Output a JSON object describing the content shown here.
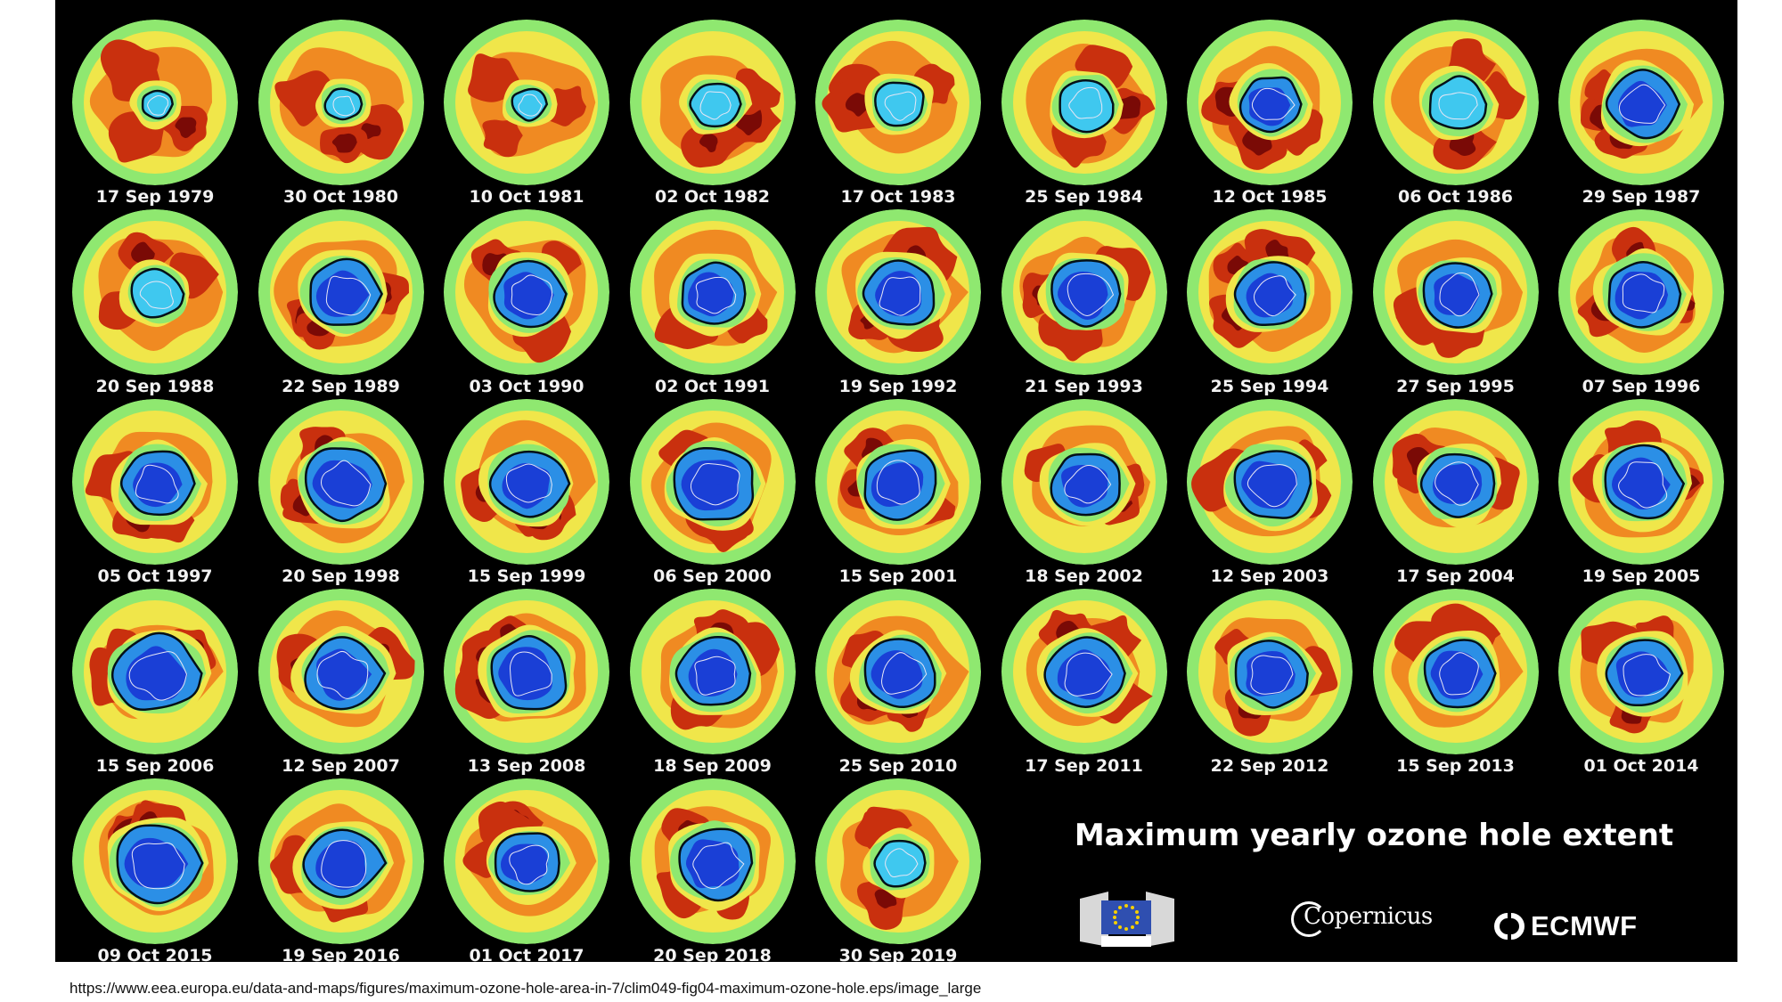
{
  "title": "Maximum yearly ozone hole extent",
  "source_url": "https://www.eea.europa.eu/data-and-maps/figures/maximum-ozone-hole-area-in-7/clim049-fig04-maximum-ozone-hole.eps/image_large",
  "logos": {
    "copernicus": "Copernicus",
    "ecmwf": "ECMWF"
  },
  "colors": {
    "background": "#000000",
    "ring_green": "#8fe870",
    "mid_yellow": "#f0e64a",
    "orange": "#f08a22",
    "red": "#c9300e",
    "dark_red": "#7a0a06",
    "hole_light": "#3fc8ef",
    "hole_mid": "#2b8fe6",
    "hole_deep": "#1a3fd6"
  },
  "maps": [
    {
      "date": "17 Sep 1979",
      "hole": 0.1
    },
    {
      "date": "30 Oct 1980",
      "hole": 0.18
    },
    {
      "date": "10 Oct 1981",
      "hole": 0.16
    },
    {
      "date": "02 Oct 1982",
      "hole": 0.38
    },
    {
      "date": "17 Oct 1983",
      "hole": 0.42
    },
    {
      "date": "25 Sep 1984",
      "hole": 0.55
    },
    {
      "date": "12 Oct 1985",
      "hole": 0.62
    },
    {
      "date": "06 Oct 1986",
      "hole": 0.55
    },
    {
      "date": "29 Sep 1987",
      "hole": 0.78
    },
    {
      "date": "20 Sep 1988",
      "hole": 0.45
    },
    {
      "date": "22 Sep 1989",
      "hole": 0.8
    },
    {
      "date": "03 Oct 1990",
      "hole": 0.74
    },
    {
      "date": "02 Oct 1991",
      "hole": 0.72
    },
    {
      "date": "19 Sep 1992",
      "hole": 0.8
    },
    {
      "date": "21 Sep 1993",
      "hole": 0.78
    },
    {
      "date": "25 Sep 1994",
      "hole": 0.75
    },
    {
      "date": "27 Sep 1995",
      "hole": 0.72
    },
    {
      "date": "07 Sep 1996",
      "hole": 0.8
    },
    {
      "date": "05 Oct 1997",
      "hole": 0.78
    },
    {
      "date": "20 Sep 1998",
      "hole": 0.9
    },
    {
      "date": "15 Sep 1999",
      "hole": 0.82
    },
    {
      "date": "06 Sep 2000",
      "hole": 0.95
    },
    {
      "date": "15 Sep 2001",
      "hole": 0.85
    },
    {
      "date": "18 Sep 2002",
      "hole": 0.74
    },
    {
      "date": "12 Sep 2003",
      "hole": 0.9
    },
    {
      "date": "17 Sep 2004",
      "hole": 0.78
    },
    {
      "date": "19 Sep 2005",
      "hole": 0.88
    },
    {
      "date": "15 Sep 2006",
      "hole": 0.98
    },
    {
      "date": "12 Sep 2007",
      "hole": 0.85
    },
    {
      "date": "13 Sep 2008",
      "hole": 0.92
    },
    {
      "date": "18 Sep 2009",
      "hole": 0.86
    },
    {
      "date": "25 Sep 2010",
      "hole": 0.8
    },
    {
      "date": "17 Sep 2011",
      "hole": 0.9
    },
    {
      "date": "22 Sep 2012",
      "hole": 0.78
    },
    {
      "date": "15 Sep 2013",
      "hole": 0.8
    },
    {
      "date": "01 Oct 2014",
      "hole": 0.82
    },
    {
      "date": "09 Oct 2015",
      "hole": 0.98
    },
    {
      "date": "19 Sep 2016",
      "hole": 0.86
    },
    {
      "date": "01 Oct 2017",
      "hole": 0.7
    },
    {
      "date": "20 Sep 2018",
      "hole": 0.9
    },
    {
      "date": "30 Sep 2019",
      "hole": 0.45
    }
  ]
}
